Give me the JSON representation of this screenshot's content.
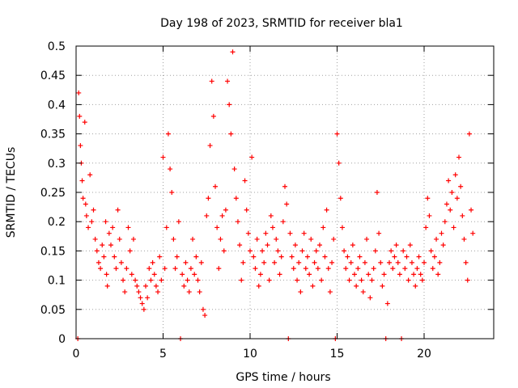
{
  "chart_data": {
    "type": "scatter",
    "title": "Day 198 of 2023, SRMTID for receiver bla1",
    "xlabel": "GPS time / hours",
    "ylabel": "SRMTID / TECUs",
    "xlim": [
      0,
      24
    ],
    "ylim": [
      0,
      0.5
    ],
    "xticks": [
      0,
      5,
      10,
      15,
      20
    ],
    "yticks": [
      0,
      0.05,
      0.1,
      0.15,
      0.2,
      0.25,
      0.3,
      0.35,
      0.4,
      0.45,
      0.5
    ],
    "ytick_labels": [
      "0",
      "0.05",
      "0.1",
      "0.15",
      "0.2",
      "0.25",
      "0.3",
      "0.35",
      "0.4",
      "0.45",
      "0.5"
    ],
    "grid": true,
    "marker": "+",
    "series": [
      {
        "name": "SRMTID",
        "color": "#ff0000",
        "points": [
          [
            0.1,
            0.0
          ],
          [
            0.15,
            0.42
          ],
          [
            0.2,
            0.38
          ],
          [
            0.25,
            0.33
          ],
          [
            0.3,
            0.3
          ],
          [
            0.35,
            0.27
          ],
          [
            0.4,
            0.24
          ],
          [
            0.5,
            0.37
          ],
          [
            0.55,
            0.23
          ],
          [
            0.6,
            0.21
          ],
          [
            0.7,
            0.19
          ],
          [
            0.8,
            0.28
          ],
          [
            0.9,
            0.2
          ],
          [
            1.0,
            0.22
          ],
          [
            1.1,
            0.17
          ],
          [
            1.2,
            0.15
          ],
          [
            1.3,
            0.13
          ],
          [
            1.4,
            0.12
          ],
          [
            1.5,
            0.16
          ],
          [
            1.6,
            0.14
          ],
          [
            1.7,
            0.2
          ],
          [
            1.75,
            0.11
          ],
          [
            1.8,
            0.09
          ],
          [
            1.9,
            0.18
          ],
          [
            2.0,
            0.16
          ],
          [
            2.1,
            0.19
          ],
          [
            2.2,
            0.14
          ],
          [
            2.3,
            0.12
          ],
          [
            2.4,
            0.22
          ],
          [
            2.5,
            0.17
          ],
          [
            2.6,
            0.13
          ],
          [
            2.7,
            0.1
          ],
          [
            2.8,
            0.08
          ],
          [
            2.9,
            0.12
          ],
          [
            3.0,
            0.19
          ],
          [
            3.1,
            0.15
          ],
          [
            3.2,
            0.11
          ],
          [
            3.3,
            0.17
          ],
          [
            3.4,
            0.1
          ],
          [
            3.5,
            0.09
          ],
          [
            3.6,
            0.08
          ],
          [
            3.7,
            0.07
          ],
          [
            3.8,
            0.06
          ],
          [
            3.9,
            0.05
          ],
          [
            4.0,
            0.09
          ],
          [
            4.1,
            0.07
          ],
          [
            4.2,
            0.12
          ],
          [
            4.3,
            0.1
          ],
          [
            4.4,
            0.13
          ],
          [
            4.5,
            0.11
          ],
          [
            4.6,
            0.09
          ],
          [
            4.7,
            0.08
          ],
          [
            4.8,
            0.14
          ],
          [
            4.9,
            0.1
          ],
          [
            5.0,
            0.31
          ],
          [
            5.1,
            0.12
          ],
          [
            5.2,
            0.19
          ],
          [
            5.3,
            0.35
          ],
          [
            5.4,
            0.29
          ],
          [
            5.5,
            0.25
          ],
          [
            5.6,
            0.17
          ],
          [
            5.7,
            0.12
          ],
          [
            5.8,
            0.14
          ],
          [
            5.9,
            0.2
          ],
          [
            6.0,
            0.0
          ],
          [
            6.1,
            0.11
          ],
          [
            6.2,
            0.09
          ],
          [
            6.3,
            0.13
          ],
          [
            6.4,
            0.1
          ],
          [
            6.5,
            0.08
          ],
          [
            6.6,
            0.12
          ],
          [
            6.7,
            0.17
          ],
          [
            6.8,
            0.11
          ],
          [
            6.9,
            0.14
          ],
          [
            7.0,
            0.1
          ],
          [
            7.1,
            0.08
          ],
          [
            7.2,
            0.13
          ],
          [
            7.3,
            0.05
          ],
          [
            7.4,
            0.04
          ],
          [
            7.5,
            0.21
          ],
          [
            7.6,
            0.24
          ],
          [
            7.7,
            0.33
          ],
          [
            7.8,
            0.44
          ],
          [
            7.9,
            0.38
          ],
          [
            8.0,
            0.26
          ],
          [
            8.1,
            0.19
          ],
          [
            8.2,
            0.12
          ],
          [
            8.3,
            0.17
          ],
          [
            8.4,
            0.21
          ],
          [
            8.5,
            0.15
          ],
          [
            8.6,
            0.22
          ],
          [
            8.7,
            0.44
          ],
          [
            8.8,
            0.4
          ],
          [
            8.9,
            0.35
          ],
          [
            9.0,
            0.49
          ],
          [
            9.1,
            0.29
          ],
          [
            9.2,
            0.24
          ],
          [
            9.3,
            0.2
          ],
          [
            9.4,
            0.16
          ],
          [
            9.5,
            0.1
          ],
          [
            9.6,
            0.13
          ],
          [
            9.7,
            0.27
          ],
          [
            9.8,
            0.22
          ],
          [
            9.9,
            0.18
          ],
          [
            10.0,
            0.15
          ],
          [
            10.1,
            0.31
          ],
          [
            10.2,
            0.14
          ],
          [
            10.3,
            0.12
          ],
          [
            10.4,
            0.17
          ],
          [
            10.5,
            0.09
          ],
          [
            10.6,
            0.11
          ],
          [
            10.7,
            0.15
          ],
          [
            10.8,
            0.13
          ],
          [
            10.9,
            0.18
          ],
          [
            11.0,
            0.16
          ],
          [
            11.1,
            0.1
          ],
          [
            11.2,
            0.21
          ],
          [
            11.3,
            0.19
          ],
          [
            11.4,
            0.13
          ],
          [
            11.5,
            0.17
          ],
          [
            11.6,
            0.15
          ],
          [
            11.7,
            0.11
          ],
          [
            11.8,
            0.14
          ],
          [
            11.9,
            0.2
          ],
          [
            12.0,
            0.26
          ],
          [
            12.1,
            0.23
          ],
          [
            12.2,
            0.0
          ],
          [
            12.3,
            0.18
          ],
          [
            12.4,
            0.14
          ],
          [
            12.5,
            0.12
          ],
          [
            12.6,
            0.16
          ],
          [
            12.7,
            0.1
          ],
          [
            12.8,
            0.13
          ],
          [
            12.9,
            0.08
          ],
          [
            13.0,
            0.15
          ],
          [
            13.1,
            0.18
          ],
          [
            13.2,
            0.12
          ],
          [
            13.3,
            0.14
          ],
          [
            13.4,
            0.11
          ],
          [
            13.5,
            0.17
          ],
          [
            13.6,
            0.09
          ],
          [
            13.7,
            0.13
          ],
          [
            13.8,
            0.15
          ],
          [
            13.9,
            0.12
          ],
          [
            14.0,
            0.16
          ],
          [
            14.1,
            0.1
          ],
          [
            14.2,
            0.19
          ],
          [
            14.3,
            0.14
          ],
          [
            14.4,
            0.22
          ],
          [
            14.5,
            0.12
          ],
          [
            14.6,
            0.08
          ],
          [
            14.7,
            0.13
          ],
          [
            14.8,
            0.17
          ],
          [
            14.9,
            0.0
          ],
          [
            15.0,
            0.35
          ],
          [
            15.1,
            0.3
          ],
          [
            15.2,
            0.24
          ],
          [
            15.3,
            0.19
          ],
          [
            15.4,
            0.15
          ],
          [
            15.5,
            0.12
          ],
          [
            15.6,
            0.14
          ],
          [
            15.7,
            0.1
          ],
          [
            15.8,
            0.13
          ],
          [
            15.9,
            0.16
          ],
          [
            16.0,
            0.11
          ],
          [
            16.1,
            0.09
          ],
          [
            16.2,
            0.12
          ],
          [
            16.3,
            0.14
          ],
          [
            16.4,
            0.1
          ],
          [
            16.5,
            0.08
          ],
          [
            16.6,
            0.13
          ],
          [
            16.7,
            0.17
          ],
          [
            16.8,
            0.11
          ],
          [
            16.9,
            0.07
          ],
          [
            17.0,
            0.1
          ],
          [
            17.1,
            0.12
          ],
          [
            17.2,
            0.15
          ],
          [
            17.3,
            0.25
          ],
          [
            17.4,
            0.18
          ],
          [
            17.5,
            0.13
          ],
          [
            17.6,
            0.09
          ],
          [
            17.7,
            0.11
          ],
          [
            17.8,
            0.0
          ],
          [
            17.9,
            0.06
          ],
          [
            18.0,
            0.13
          ],
          [
            18.1,
            0.15
          ],
          [
            18.2,
            0.12
          ],
          [
            18.3,
            0.14
          ],
          [
            18.4,
            0.16
          ],
          [
            18.5,
            0.13
          ],
          [
            18.6,
            0.11
          ],
          [
            18.7,
            0.0
          ],
          [
            18.8,
            0.15
          ],
          [
            18.9,
            0.12
          ],
          [
            19.0,
            0.14
          ],
          [
            19.1,
            0.1
          ],
          [
            19.2,
            0.16
          ],
          [
            19.3,
            0.13
          ],
          [
            19.4,
            0.11
          ],
          [
            19.5,
            0.09
          ],
          [
            19.6,
            0.12
          ],
          [
            19.7,
            0.14
          ],
          [
            19.8,
            0.11
          ],
          [
            19.9,
            0.1
          ],
          [
            20.0,
            0.13
          ],
          [
            20.1,
            0.19
          ],
          [
            20.2,
            0.24
          ],
          [
            20.3,
            0.21
          ],
          [
            20.4,
            0.15
          ],
          [
            20.5,
            0.12
          ],
          [
            20.6,
            0.14
          ],
          [
            20.7,
            0.17
          ],
          [
            20.8,
            0.11
          ],
          [
            20.9,
            0.13
          ],
          [
            21.0,
            0.18
          ],
          [
            21.1,
            0.16
          ],
          [
            21.2,
            0.2
          ],
          [
            21.3,
            0.23
          ],
          [
            21.4,
            0.27
          ],
          [
            21.5,
            0.22
          ],
          [
            21.6,
            0.25
          ],
          [
            21.7,
            0.19
          ],
          [
            21.8,
            0.28
          ],
          [
            21.9,
            0.24
          ],
          [
            22.0,
            0.31
          ],
          [
            22.1,
            0.26
          ],
          [
            22.2,
            0.21
          ],
          [
            22.3,
            0.17
          ],
          [
            22.4,
            0.13
          ],
          [
            22.5,
            0.1
          ],
          [
            22.6,
            0.35
          ],
          [
            22.7,
            0.22
          ],
          [
            22.8,
            0.18
          ]
        ]
      }
    ]
  }
}
